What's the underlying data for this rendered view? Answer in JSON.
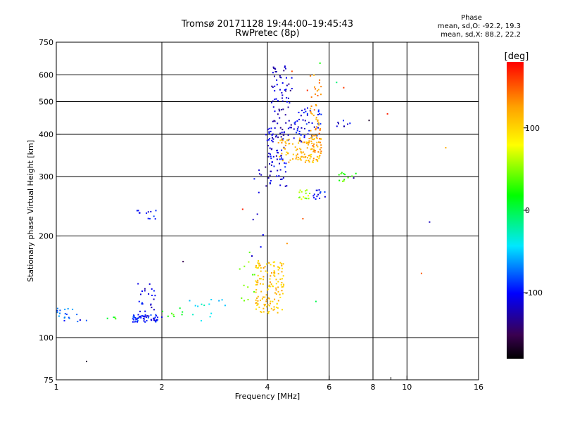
{
  "chart_data": {
    "type": "scatter",
    "title": "Tromsø 20171128 19:44:00–19:45:43",
    "subtitle": "RwPretec (8p)",
    "xlabel": "Frequency [MHz]",
    "ylabel": "Stationary phase Virtual Height [km]",
    "x_scale": "log",
    "y_scale": "log",
    "xlim": [
      1,
      16
    ],
    "ylim": [
      75,
      750
    ],
    "x_ticks": [
      1,
      2,
      4,
      6,
      8,
      10,
      16
    ],
    "x_minor_ticks": [
      9
    ],
    "y_ticks": [
      75,
      100,
      200,
      300,
      400,
      500,
      600,
      750
    ],
    "grid": true,
    "color_scale": {
      "label": "[deg]",
      "range": [
        -180,
        180
      ],
      "ticks": [
        100,
        0,
        -100
      ],
      "palette": "rainbow: black (-180) → purple → blue → cyan → green → yellow → orange → red (180)"
    },
    "phase_info": {
      "title": "Phase",
      "line_o": "mean, sd,O: -92.2, 19.3",
      "line_x": "mean, sd,X:  88.2, 22.2"
    },
    "clusters": [
      {
        "x_range": [
          1.0,
          1.12
        ],
        "y_range": [
          112,
          122
        ],
        "n": 14,
        "phase": -70
      },
      {
        "x_range": [
          1.05,
          1.25
        ],
        "y_range": [
          111,
          121
        ],
        "n": 6,
        "phase": -95
      },
      {
        "x_range": [
          1.35,
          1.5
        ],
        "y_range": [
          113,
          117
        ],
        "n": 4,
        "phase": 20
      },
      {
        "x_range": [
          1.65,
          1.95
        ],
        "y_range": [
          111,
          117
        ],
        "n": 55,
        "phase": -100
      },
      {
        "x_range": [
          1.7,
          1.92
        ],
        "y_range": [
          118,
          145
        ],
        "n": 22,
        "phase": -105
      },
      {
        "x_range": [
          1.68,
          1.95
        ],
        "y_range": [
          224,
          238
        ],
        "n": 12,
        "phase": -100
      },
      {
        "x_range": [
          2.0,
          2.3
        ],
        "y_range": [
          113,
          125
        ],
        "n": 8,
        "phase": 20
      },
      {
        "x_range": [
          2.4,
          3.2
        ],
        "y_range": [
          112,
          130
        ],
        "n": 14,
        "phase": -40
      },
      {
        "x_range": [
          3.3,
          3.7
        ],
        "y_range": [
          120,
          180
        ],
        "n": 12,
        "phase": 40
      },
      {
        "x_range": [
          3.6,
          3.95
        ],
        "y_range": [
          160,
          330
        ],
        "n": 10,
        "phase": -115
      },
      {
        "x_range": [
          3.7,
          4.45
        ],
        "y_range": [
          118,
          170
        ],
        "n": 140,
        "phase": 110
      },
      {
        "x_range": [
          3.95,
          4.55
        ],
        "y_range": [
          280,
          420
        ],
        "n": 70,
        "phase": -110
      },
      {
        "x_range": [
          4.1,
          4.7
        ],
        "y_range": [
          380,
          640
        ],
        "n": 80,
        "phase": -120
      },
      {
        "x_range": [
          4.3,
          5.7
        ],
        "y_range": [
          330,
          390
        ],
        "n": 110,
        "phase": 115
      },
      {
        "x_range": [
          4.75,
          5.7
        ],
        "y_range": [
          380,
          480
        ],
        "n": 50,
        "phase": -105
      },
      {
        "x_range": [
          5.3,
          5.7
        ],
        "y_range": [
          350,
          600
        ],
        "n": 55,
        "phase": 130
      },
      {
        "x_range": [
          4.9,
          5.3
        ],
        "y_range": [
          255,
          275
        ],
        "n": 15,
        "phase": 60
      },
      {
        "x_range": [
          5.4,
          5.85
        ],
        "y_range": [
          255,
          275
        ],
        "n": 14,
        "phase": -100
      },
      {
        "x_range": [
          6.4,
          7.2
        ],
        "y_range": [
          290,
          310
        ],
        "n": 12,
        "phase": 30
      },
      {
        "x_range": [
          6.3,
          7.0
        ],
        "y_range": [
          420,
          450
        ],
        "n": 8,
        "phase": -110
      }
    ],
    "outliers": [
      {
        "x": 1.22,
        "y": 85,
        "phase": -160
      },
      {
        "x": 2.3,
        "y": 168,
        "phase": -150
      },
      {
        "x": 2.0,
        "y": 115,
        "phase": -110
      },
      {
        "x": 4.7,
        "y": 615,
        "phase": 155
      },
      {
        "x": 6.6,
        "y": 550,
        "phase": 160
      },
      {
        "x": 8.8,
        "y": 460,
        "phase": 170
      },
      {
        "x": 7.8,
        "y": 440,
        "phase": -165
      },
      {
        "x": 5.2,
        "y": 540,
        "phase": 165
      },
      {
        "x": 5.65,
        "y": 650,
        "phase": 20
      },
      {
        "x": 6.3,
        "y": 570,
        "phase": -10
      },
      {
        "x": 5.5,
        "y": 128,
        "phase": 0
      },
      {
        "x": 11.6,
        "y": 220,
        "phase": -120
      },
      {
        "x": 11.0,
        "y": 155,
        "phase": 150
      },
      {
        "x": 12.9,
        "y": 365,
        "phase": 120
      },
      {
        "x": 7.05,
        "y": 297,
        "phase": -130
      },
      {
        "x": 3.95,
        "y": 320,
        "phase": -140
      },
      {
        "x": 5.05,
        "y": 225,
        "phase": 150
      },
      {
        "x": 4.55,
        "y": 190,
        "phase": 130
      },
      {
        "x": 3.4,
        "y": 240,
        "phase": 170
      }
    ]
  }
}
